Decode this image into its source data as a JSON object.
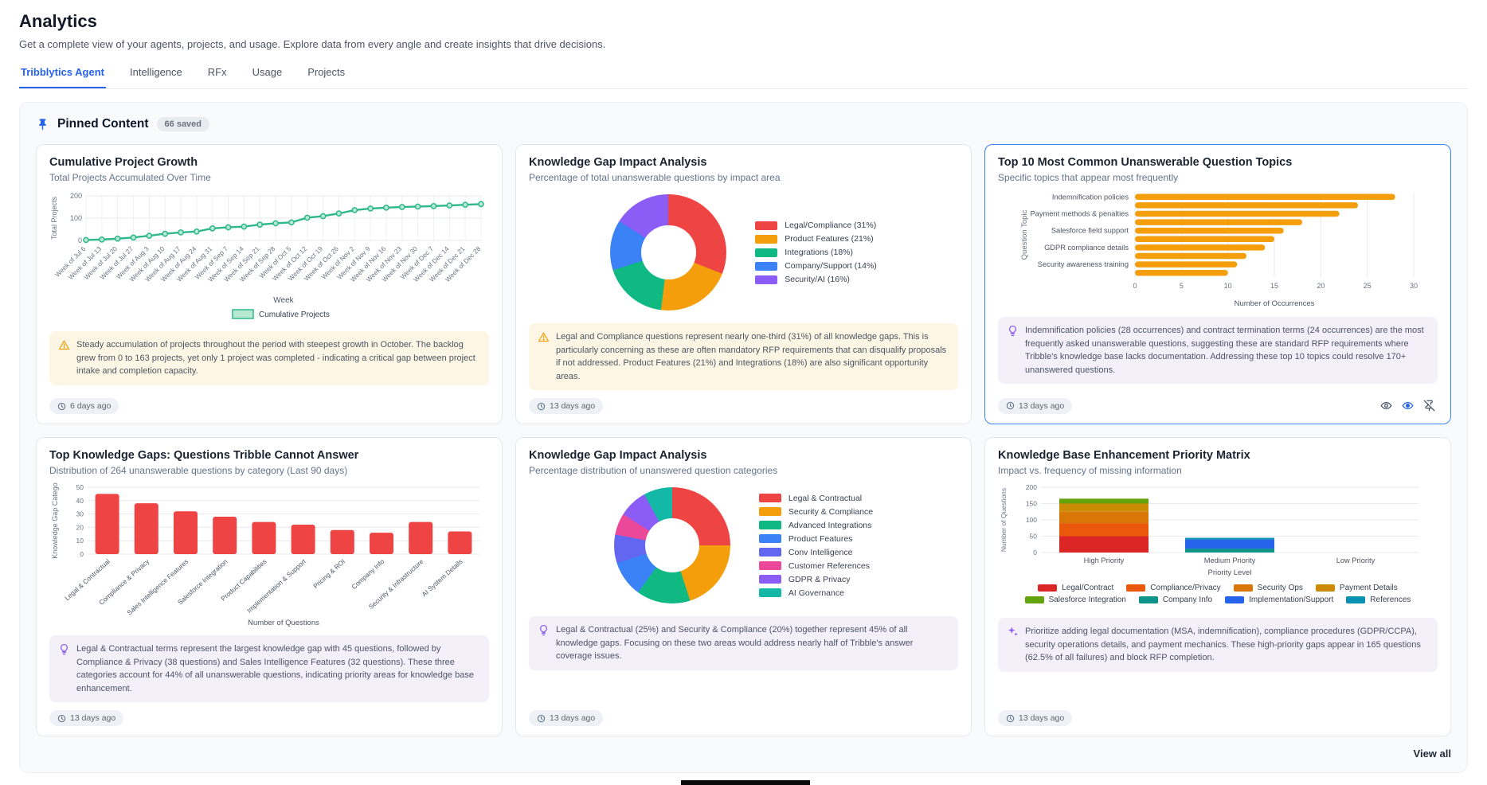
{
  "header": {
    "title": "Analytics",
    "subtitle": "Get a complete view of your agents, projects, and usage. Explore data from every angle and create insights that drive decisions."
  },
  "tabs": {
    "items": [
      {
        "label": "Tribblytics Agent",
        "active": true
      },
      {
        "label": "Intelligence",
        "active": false
      },
      {
        "label": "RFx",
        "active": false
      },
      {
        "label": "Usage",
        "active": false
      },
      {
        "label": "Projects",
        "active": false
      }
    ]
  },
  "pinned": {
    "title": "Pinned Content",
    "badge": "66 saved",
    "view_all_label": "View all"
  },
  "colors": {
    "accent": "#2563eb",
    "warning": "#f59e0b",
    "insight_purple": "#8b5cf6",
    "line_green": "#2eb88a",
    "bar_orange": "#f59e0b",
    "bar_red": "#ee4444"
  },
  "cards": [
    {
      "title": "Cumulative Project Growth",
      "subtitle": "Total Projects Accumulated Over Time",
      "insight_text": "Steady accumulation of projects throughout the period with steepest growth in October. The backlog grew from 0 to 163 projects, yet only 1 project was completed - indicating a critical gap between project intake and completion capacity.",
      "timestamp": "6 days ago"
    },
    {
      "title": "Knowledge Gap Impact Analysis",
      "subtitle": "Percentage of total unanswerable questions by impact area",
      "insight_text": "Legal and Compliance questions represent nearly one-third (31%) of all knowledge gaps. This is particularly concerning as these are often mandatory RFP requirements that can disqualify proposals if not addressed. Product Features (21%) and Integrations (18%) are also significant opportunity areas.",
      "timestamp": "13 days ago"
    },
    {
      "title": "Top 10 Most Common Unanswerable Question Topics",
      "subtitle": "Specific topics that appear most frequently",
      "insight_text": "Indemnification policies (28 occurrences) and contract termination terms (24 occurrences) are the most frequently asked unanswerable questions, suggesting these are standard RFP requirements where Tribble's knowledge base lacks documentation. Addressing these top 10 topics could resolve 170+ unanswered questions.",
      "timestamp": "13 days ago"
    },
    {
      "title": "Top Knowledge Gaps: Questions Tribble Cannot Answer",
      "subtitle": "Distribution of 264 unanswerable questions by category (Last 90 days)",
      "insight_text": "Legal & Contractual terms represent the largest knowledge gap with 45 questions, followed by Compliance & Privacy (38 questions) and Sales Intelligence Features (32 questions). These three categories account for 44% of all unanswerable questions, indicating priority areas for knowledge base enhancement.",
      "timestamp": "13 days ago"
    },
    {
      "title": "Knowledge Gap Impact Analysis",
      "subtitle": "Percentage distribution of unanswered question categories",
      "insight_text": "Legal & Contractual (25%) and Security & Compliance (20%) together represent 45% of all knowledge gaps. Focusing on these two areas would address nearly half of Tribble's answer coverage issues.",
      "timestamp": "13 days ago"
    },
    {
      "title": "Knowledge Base Enhancement Priority Matrix",
      "subtitle": "Impact vs. frequency of missing information",
      "insight_text": "Prioritize adding legal documentation (MSA, indemnification), compliance procedures (GDPR/CCPA), security operations details, and payment mechanics. These high-priority gaps appear in 165 questions (62.5% of all failures) and block RFP completion.",
      "timestamp": "13 days ago"
    }
  ],
  "chart_data": [
    {
      "type": "line",
      "title": "Cumulative Project Growth",
      "xlabel": "Week",
      "ylabel": "Total Projects",
      "ylim": [
        0,
        200
      ],
      "yticks": [
        0,
        100,
        200
      ],
      "grid": true,
      "legend": [
        "Cumulative Projects"
      ],
      "legend_position": "bottom",
      "color": "#2eb88a",
      "x": [
        "Week of Jul 6",
        "Week of Jul 13",
        "Week of Jul 20",
        "Week of Jul 27",
        "Week of Aug 3",
        "Week of Aug 10",
        "Week of Aug 17",
        "Week of Aug 24",
        "Week of Aug 31",
        "Week of Sep 7",
        "Week of Sep 14",
        "Week of Sep 21",
        "Week of Sep 28",
        "Week of Oct 5",
        "Week of Oct 12",
        "Week of Oct 19",
        "Week of Oct 26",
        "Week of Nov 2",
        "Week of Nov 9",
        "Week of Nov 16",
        "Week of Nov 23",
        "Week of Nov 30",
        "Week of Dec 7",
        "Week of Dec 14",
        "Week of Dec 21",
        "Week of Dec 28"
      ],
      "series": [
        {
          "name": "Cumulative Projects",
          "values": [
            2,
            4,
            8,
            13,
            21,
            30,
            36,
            40,
            54,
            59,
            62,
            71,
            77,
            81,
            102,
            109,
            121,
            136,
            143,
            147,
            150,
            152,
            154,
            157,
            160,
            163
          ]
        }
      ]
    },
    {
      "type": "pie",
      "donut": true,
      "title": "Knowledge Gap Impact Analysis",
      "labels": [
        "Legal/Compliance (31%)",
        "Product Features (21%)",
        "Integrations (18%)",
        "Company/Support (14%)",
        "Security/AI (16%)"
      ],
      "values": [
        31,
        21,
        18,
        14,
        16
      ],
      "colors": [
        "#ef4444",
        "#f59e0b",
        "#10b981",
        "#3b82f6",
        "#8b5cf6"
      ],
      "legend_position": "right"
    },
    {
      "type": "bar",
      "orientation": "horizontal",
      "title": "Top 10 Most Common Unanswerable Question Topics",
      "categories": [
        "Indemnification policies",
        "",
        "Payment methods & penalties",
        "",
        "Salesforce field support",
        "",
        "GDPR compliance details",
        "",
        "Security awareness training",
        ""
      ],
      "values": [
        28,
        24,
        22,
        18,
        16,
        15,
        14,
        12,
        11,
        10
      ],
      "xlabel": "Number of Occurrences",
      "ylabel": "Question Topic",
      "xticks": [
        0,
        5,
        10,
        15,
        20,
        25,
        30
      ],
      "xlim": [
        0,
        30
      ],
      "color": "#f59e0b"
    },
    {
      "type": "bar",
      "title": "Top Knowledge Gaps: Questions Tribble Cannot Answer",
      "categories": [
        "Legal & Contractual",
        "Compliance & Privacy",
        "Sales Intelligence Features",
        "Salesforce Integration",
        "Product Capabilities",
        "Implementation & Support",
        "Pricing & ROI",
        "Company Info",
        "Security & Infrastructure",
        "AI System Details"
      ],
      "values": [
        45,
        38,
        32,
        28,
        24,
        22,
        18,
        16,
        24,
        17
      ],
      "xlabel": "Number of Questions",
      "ylabel": "Knowledge Gap Catego",
      "yticks": [
        0,
        10,
        20,
        30,
        40,
        50
      ],
      "ylim": [
        0,
        50
      ],
      "color": "#ee4444"
    },
    {
      "type": "pie",
      "donut": true,
      "title": "Knowledge Gap Impact Analysis",
      "labels": [
        "Legal & Contractual",
        "Security & Compliance",
        "Advanced Integrations",
        "Product Features",
        "Conv Intelligence",
        "Customer References",
        "GDPR & Privacy",
        "AI Governance"
      ],
      "values": [
        25,
        20,
        15,
        10,
        8,
        6,
        8,
        8
      ],
      "colors": [
        "#ef4444",
        "#f59e0b",
        "#10b981",
        "#3b82f6",
        "#6366f1",
        "#ec4899",
        "#8b5cf6",
        "#14b8a6"
      ],
      "legend_position": "right"
    },
    {
      "type": "bar",
      "stacked": true,
      "title": "Knowledge Base Enhancement Priority Matrix",
      "categories": [
        "High Priority",
        "Medium Priority",
        "Low Priority"
      ],
      "xlabel": "Priority Level",
      "ylabel": "Number of Questions",
      "yticks": [
        0,
        50,
        100,
        150,
        200
      ],
      "ylim": [
        0,
        200
      ],
      "series": [
        {
          "name": "Legal/Contract",
          "color": "#dc2626",
          "values": [
            50,
            0,
            0
          ]
        },
        {
          "name": "Compliance/Privacy",
          "color": "#ea580c",
          "values": [
            40,
            0,
            0
          ]
        },
        {
          "name": "Security Ops",
          "color": "#d97706",
          "values": [
            35,
            0,
            0
          ]
        },
        {
          "name": "Payment Details",
          "color": "#ca8a04",
          "values": [
            25,
            0,
            0
          ]
        },
        {
          "name": "Salesforce Integration",
          "color": "#65a30d",
          "values": [
            15,
            0,
            0
          ]
        },
        {
          "name": "Company Info",
          "color": "#0d9488",
          "values": [
            0,
            12,
            0
          ]
        },
        {
          "name": "Implementation/Support",
          "color": "#2563eb",
          "values": [
            0,
            28,
            0
          ]
        },
        {
          "name": "References",
          "color": "#0891b2",
          "values": [
            0,
            5,
            0
          ]
        }
      ],
      "legend_rows": [
        4,
        4
      ]
    }
  ]
}
